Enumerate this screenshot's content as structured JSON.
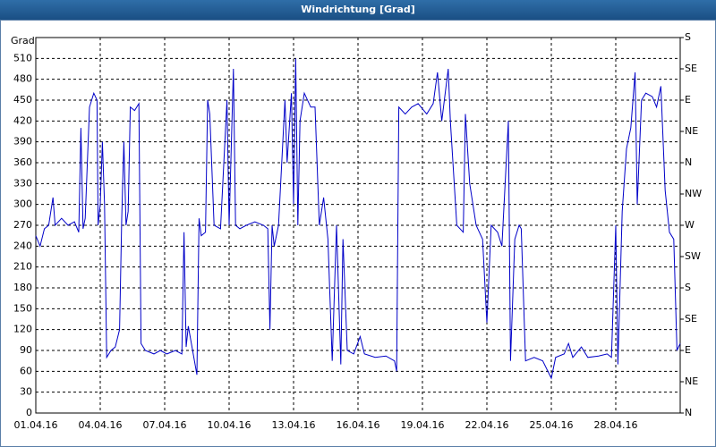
{
  "chart_data": {
    "type": "line",
    "title": "Windrichtung [Grad]",
    "y_label": "Grad",
    "xlim": [
      0,
      30
    ],
    "xticks": [
      {
        "value": 0,
        "label": "01.04.16"
      },
      {
        "value": 3,
        "label": "04.04.16"
      },
      {
        "value": 6,
        "label": "07.04.16"
      },
      {
        "value": 9,
        "label": "10.04.16"
      },
      {
        "value": 12,
        "label": "13.04.16"
      },
      {
        "value": 15,
        "label": "16.04.16"
      },
      {
        "value": 18,
        "label": "19.04.16"
      },
      {
        "value": 21,
        "label": "22.04.16"
      },
      {
        "value": 24,
        "label": "25.04.16"
      },
      {
        "value": 27,
        "label": "28.04.16"
      }
    ],
    "ylim": [
      0,
      540
    ],
    "yticks": [
      0,
      30,
      60,
      90,
      120,
      150,
      180,
      210,
      240,
      270,
      300,
      330,
      360,
      390,
      420,
      450,
      480,
      510
    ],
    "y2lim": [
      0,
      540
    ],
    "y2ticks": [
      {
        "value": 0,
        "label": "N"
      },
      {
        "value": 45,
        "label": "NE"
      },
      {
        "value": 90,
        "label": "E"
      },
      {
        "value": 135,
        "label": "SE"
      },
      {
        "value": 180,
        "label": "S"
      },
      {
        "value": 225,
        "label": "SW"
      },
      {
        "value": 270,
        "label": "W"
      },
      {
        "value": 315,
        "label": "NW"
      },
      {
        "value": 360,
        "label": "N"
      },
      {
        "value": 405,
        "label": "NE"
      },
      {
        "value": 450,
        "label": "E"
      },
      {
        "value": 495,
        "label": "SE"
      },
      {
        "value": 540,
        "label": "S"
      }
    ],
    "grid": true,
    "color": "#0000c8",
    "x": [
      0,
      0.2,
      0.4,
      0.6,
      0.8,
      0.9,
      1.2,
      1.5,
      1.8,
      2.0,
      2.1,
      2.2,
      2.3,
      2.5,
      2.7,
      2.85,
      2.9,
      3.0,
      3.1,
      3.2,
      3.3,
      3.5,
      3.7,
      3.9,
      4.0,
      4.1,
      4.2,
      4.3,
      4.4,
      4.6,
      4.8,
      4.9,
      5.1,
      5.5,
      5.8,
      6.1,
      6.5,
      6.8,
      6.9,
      7.0,
      7.1,
      7.3,
      7.5,
      7.6,
      7.7,
      7.9,
      8.0,
      8.1,
      8.3,
      8.6,
      8.9,
      9.0,
      9.2,
      9.3,
      9.5,
      9.8,
      10.2,
      10.6,
      10.8,
      10.9,
      11.0,
      11.1,
      11.3,
      11.6,
      11.7,
      11.9,
      12.0,
      12.1,
      12.2,
      12.3,
      12.5,
      12.8,
      13.0,
      13.2,
      13.4,
      13.6,
      13.8,
      14.0,
      14.2,
      14.3,
      14.5,
      14.8,
      15.1,
      15.3,
      15.8,
      16.3,
      16.7,
      16.8,
      16.9,
      17.2,
      17.5,
      17.8,
      18.2,
      18.5,
      18.7,
      18.9,
      19.2,
      19.3,
      19.6,
      19.9,
      20.0,
      20.2,
      20.5,
      20.8,
      21.0,
      21.2,
      21.5,
      21.7,
      21.8,
      22.0,
      22.1,
      22.3,
      22.5,
      22.6,
      22.8,
      23.2,
      23.6,
      24.0,
      24.2,
      24.6,
      24.8,
      25.0,
      25.4,
      25.7,
      26.2,
      26.6,
      26.8,
      27.0,
      27.1,
      27.3,
      27.5,
      27.7,
      27.9,
      28.0,
      28.2,
      28.4,
      28.7,
      28.9,
      29.1,
      29.3,
      29.5,
      29.7,
      29.85,
      30
    ],
    "values": [
      255,
      240,
      265,
      270,
      310,
      270,
      280,
      270,
      275,
      260,
      410,
      265,
      280,
      440,
      460,
      450,
      270,
      300,
      390,
      300,
      80,
      90,
      95,
      120,
      280,
      390,
      270,
      290,
      440,
      435,
      445,
      100,
      90,
      85,
      90,
      85,
      90,
      85,
      260,
      95,
      125,
      90,
      55,
      280,
      255,
      260,
      450,
      430,
      270,
      265,
      450,
      270,
      495,
      270,
      265,
      270,
      275,
      270,
      265,
      120,
      270,
      240,
      270,
      450,
      360,
      460,
      300,
      510,
      270,
      420,
      460,
      440,
      440,
      270,
      310,
      250,
      75,
      270,
      70,
      250,
      90,
      85,
      110,
      85,
      80,
      82,
      75,
      60,
      440,
      430,
      440,
      445,
      430,
      445,
      490,
      420,
      495,
      420,
      270,
      260,
      430,
      330,
      270,
      250,
      130,
      270,
      260,
      240,
      300,
      420,
      75,
      250,
      270,
      265,
      75,
      80,
      75,
      50,
      80,
      85,
      100,
      80,
      95,
      80,
      82,
      85,
      80,
      270,
      70,
      290,
      380,
      410,
      490,
      300,
      450,
      460,
      455,
      440,
      470,
      320,
      260,
      250,
      90,
      100
    ]
  }
}
